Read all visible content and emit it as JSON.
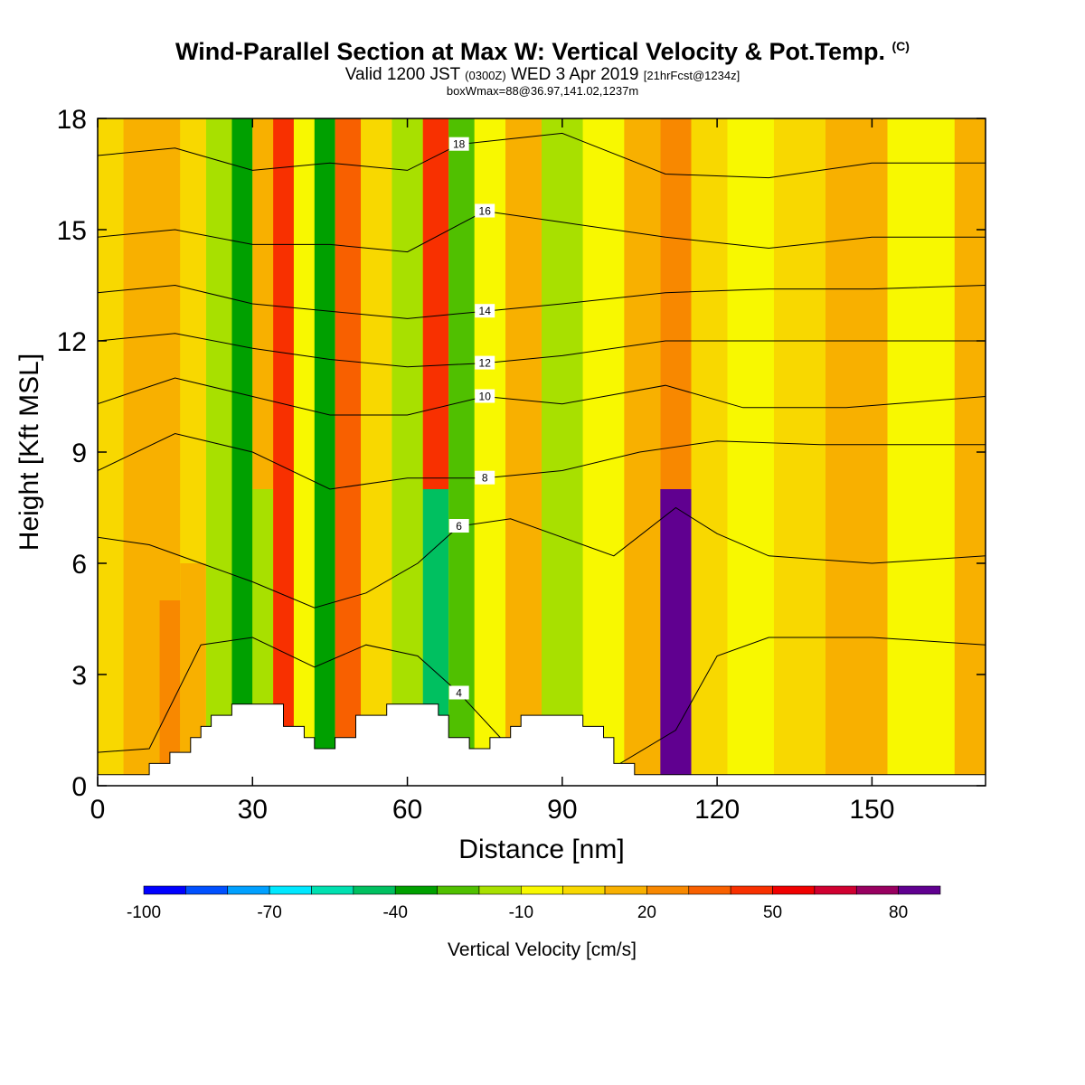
{
  "header": {
    "title": "Wind-Parallel Section at Max W: Vertical Velocity & Pot.Temp.",
    "copyright": "(C)",
    "valid_prefix": "Valid 1200 JST",
    "valid_utc": "(0300Z)",
    "valid_date": "WED 3 Apr 2019",
    "forecast": "[21hrFcst@1234z]",
    "box_info": "boxWmax=88@36.97,141.02,1237m"
  },
  "chart_data": {
    "type": "heatmap",
    "xlabel": "Distance [nm]",
    "ylabel": "Height [Kft MSL]",
    "xlim": [
      0,
      172
    ],
    "ylim": [
      0,
      18
    ],
    "x_ticks": [
      "0",
      "30",
      "60",
      "90",
      "120",
      "150"
    ],
    "y_ticks": [
      "0",
      "3",
      "6",
      "9",
      "12",
      "15",
      "18"
    ],
    "colorbar": {
      "label": "Vertical Velocity [cm/s]",
      "tick_labels": [
        "-100",
        "-70",
        "-40",
        "-10",
        "20",
        "50",
        "80"
      ],
      "colors": [
        "#0000ff",
        "#0050ff",
        "#00a0ff",
        "#00e8ff",
        "#00e0b0",
        "#00c060",
        "#00a000",
        "#50c000",
        "#a8e000",
        "#f8f800",
        "#f8d800",
        "#f8b000",
        "#f88800",
        "#f86000",
        "#f83000",
        "#f00000",
        "#d00030",
        "#980060",
        "#600090"
      ]
    },
    "velocity_columns": [
      {
        "x": 0,
        "bands": [
          {
            "y": [
              0,
              18
            ],
            "w": 0
          }
        ]
      },
      {
        "x": 10,
        "bands": [
          {
            "y": [
              0,
              18
            ],
            "w": 5
          }
        ]
      },
      {
        "x": 14,
        "bands": [
          {
            "y": [
              0,
              5
            ],
            "w": 20
          },
          {
            "y": [
              5,
              18
            ],
            "w": 8
          }
        ]
      },
      {
        "x": 18,
        "bands": [
          {
            "y": [
              0,
              6
            ],
            "w": 10
          },
          {
            "y": [
              6,
              18
            ],
            "w": 0
          }
        ]
      },
      {
        "x": 24,
        "bands": [
          {
            "y": [
              0,
              18
            ],
            "w": -20
          }
        ]
      },
      {
        "x": 28,
        "bands": [
          {
            "y": [
              0,
              18
            ],
            "w": -40
          }
        ]
      },
      {
        "x": 32,
        "bands": [
          {
            "y": [
              0,
              8
            ],
            "w": -25
          },
          {
            "y": [
              8,
              18
            ],
            "w": 10
          }
        ]
      },
      {
        "x": 36,
        "bands": [
          {
            "y": [
              0,
              18
            ],
            "w": 35
          }
        ]
      },
      {
        "x": 40,
        "bands": [
          {
            "y": [
              0,
              18
            ],
            "w": -15
          }
        ]
      },
      {
        "x": 44,
        "bands": [
          {
            "y": [
              0,
              18
            ],
            "w": -40
          }
        ]
      },
      {
        "x": 48,
        "bands": [
          {
            "y": [
              0,
              18
            ],
            "w": 25
          }
        ]
      },
      {
        "x": 54,
        "bands": [
          {
            "y": [
              0,
              18
            ],
            "w": 0
          }
        ]
      },
      {
        "x": 60,
        "bands": [
          {
            "y": [
              0,
              18
            ],
            "w": -25
          }
        ]
      },
      {
        "x": 66,
        "bands": [
          {
            "y": [
              0,
              8
            ],
            "w": -55
          },
          {
            "y": [
              8,
              18
            ],
            "w": 40
          }
        ]
      },
      {
        "x": 70,
        "bands": [
          {
            "y": [
              0,
              18
            ],
            "w": -35
          }
        ]
      },
      {
        "x": 76,
        "bands": [
          {
            "y": [
              0,
              18
            ],
            "w": -15
          }
        ]
      },
      {
        "x": 82,
        "bands": [
          {
            "y": [
              0,
              18
            ],
            "w": 5
          }
        ]
      },
      {
        "x": 90,
        "bands": [
          {
            "y": [
              0,
              18
            ],
            "w": -20
          }
        ]
      },
      {
        "x": 98,
        "bands": [
          {
            "y": [
              0,
              18
            ],
            "w": -10
          }
        ]
      },
      {
        "x": 106,
        "bands": [
          {
            "y": [
              0,
              18
            ],
            "w": 5
          }
        ]
      },
      {
        "x": 112,
        "bands": [
          {
            "y": [
              0,
              8
            ],
            "w": 88
          },
          {
            "y": [
              8,
              18
            ],
            "w": 20
          }
        ]
      },
      {
        "x": 118,
        "bands": [
          {
            "y": [
              0,
              18
            ],
            "w": 0
          }
        ]
      },
      {
        "x": 126,
        "bands": [
          {
            "y": [
              0,
              18
            ],
            "w": -15
          }
        ]
      },
      {
        "x": 136,
        "bands": [
          {
            "y": [
              0,
              18
            ],
            "w": 0
          }
        ]
      },
      {
        "x": 146,
        "bands": [
          {
            "y": [
              0,
              18
            ],
            "w": 10
          }
        ]
      },
      {
        "x": 160,
        "bands": [
          {
            "y": [
              0,
              18
            ],
            "w": -15
          }
        ]
      },
      {
        "x": 172,
        "bands": [
          {
            "y": [
              0,
              18
            ],
            "w": 5
          }
        ]
      }
    ],
    "theta_contours": [
      {
        "level": "4",
        "points": [
          [
            0,
            0.9
          ],
          [
            10,
            1.0
          ],
          [
            20,
            3.8
          ],
          [
            30,
            4.0
          ],
          [
            42,
            3.2
          ],
          [
            52,
            3.8
          ],
          [
            62,
            3.5
          ],
          [
            70,
            2.5
          ],
          [
            80,
            1.0
          ],
          [
            100,
            0.5
          ],
          [
            112,
            1.5
          ],
          [
            120,
            3.5
          ],
          [
            130,
            4.0
          ],
          [
            150,
            4.0
          ],
          [
            172,
            3.8
          ]
        ]
      },
      {
        "level": "6",
        "points": [
          [
            0,
            6.7
          ],
          [
            10,
            6.5
          ],
          [
            20,
            6.0
          ],
          [
            30,
            5.5
          ],
          [
            42,
            4.8
          ],
          [
            52,
            5.2
          ],
          [
            62,
            6.0
          ],
          [
            70,
            7.0
          ],
          [
            80,
            7.2
          ],
          [
            100,
            6.2
          ],
          [
            112,
            7.5
          ],
          [
            120,
            6.8
          ],
          [
            130,
            6.2
          ],
          [
            150,
            6.0
          ],
          [
            172,
            6.2
          ]
        ]
      },
      {
        "level": "8",
        "points": [
          [
            0,
            8.5
          ],
          [
            15,
            9.5
          ],
          [
            30,
            9.0
          ],
          [
            45,
            8.0
          ],
          [
            60,
            8.3
          ],
          [
            75,
            8.3
          ],
          [
            90,
            8.5
          ],
          [
            105,
            9.0
          ],
          [
            120,
            9.3
          ],
          [
            140,
            9.2
          ],
          [
            172,
            9.2
          ]
        ]
      },
      {
        "level": "10",
        "points": [
          [
            0,
            10.3
          ],
          [
            15,
            11.0
          ],
          [
            30,
            10.5
          ],
          [
            45,
            10.0
          ],
          [
            60,
            10.0
          ],
          [
            75,
            10.5
          ],
          [
            90,
            10.3
          ],
          [
            110,
            10.8
          ],
          [
            125,
            10.2
          ],
          [
            145,
            10.2
          ],
          [
            172,
            10.5
          ]
        ]
      },
      {
        "level": "12",
        "points": [
          [
            0,
            12.0
          ],
          [
            15,
            12.2
          ],
          [
            30,
            11.8
          ],
          [
            45,
            11.5
          ],
          [
            60,
            11.3
          ],
          [
            75,
            11.4
          ],
          [
            90,
            11.6
          ],
          [
            110,
            12.0
          ],
          [
            130,
            12.0
          ],
          [
            150,
            12.0
          ],
          [
            172,
            12.0
          ]
        ]
      },
      {
        "level": "14",
        "points": [
          [
            0,
            13.3
          ],
          [
            15,
            13.5
          ],
          [
            30,
            13.0
          ],
          [
            45,
            12.8
          ],
          [
            60,
            12.6
          ],
          [
            75,
            12.8
          ],
          [
            90,
            13.0
          ],
          [
            110,
            13.3
          ],
          [
            130,
            13.4
          ],
          [
            150,
            13.4
          ],
          [
            172,
            13.5
          ]
        ]
      },
      {
        "level": "16",
        "points": [
          [
            0,
            14.8
          ],
          [
            15,
            15.0
          ],
          [
            30,
            14.6
          ],
          [
            45,
            14.6
          ],
          [
            60,
            14.4
          ],
          [
            75,
            15.5
          ],
          [
            90,
            15.2
          ],
          [
            110,
            14.8
          ],
          [
            130,
            14.5
          ],
          [
            150,
            14.8
          ],
          [
            172,
            14.8
          ]
        ]
      },
      {
        "level": "18",
        "points": [
          [
            0,
            17.0
          ],
          [
            15,
            17.2
          ],
          [
            30,
            16.6
          ],
          [
            45,
            16.8
          ],
          [
            60,
            16.6
          ],
          [
            70,
            17.3
          ],
          [
            90,
            17.6
          ],
          [
            110,
            16.5
          ],
          [
            130,
            16.4
          ],
          [
            150,
            16.8
          ],
          [
            172,
            16.8
          ]
        ]
      }
    ],
    "terrain": [
      [
        0,
        0.3
      ],
      [
        10,
        0.3
      ],
      [
        10,
        0.6
      ],
      [
        14,
        0.6
      ],
      [
        14,
        0.9
      ],
      [
        18,
        0.9
      ],
      [
        18,
        1.3
      ],
      [
        20,
        1.3
      ],
      [
        20,
        1.6
      ],
      [
        22,
        1.6
      ],
      [
        22,
        1.9
      ],
      [
        26,
        1.9
      ],
      [
        26,
        2.2
      ],
      [
        36,
        2.2
      ],
      [
        36,
        1.6
      ],
      [
        40,
        1.6
      ],
      [
        40,
        1.3
      ],
      [
        42,
        1.3
      ],
      [
        42,
        1.0
      ],
      [
        46,
        1.0
      ],
      [
        46,
        1.3
      ],
      [
        50,
        1.3
      ],
      [
        50,
        1.9
      ],
      [
        56,
        1.9
      ],
      [
        56,
        2.2
      ],
      [
        66,
        2.2
      ],
      [
        66,
        1.9
      ],
      [
        68,
        1.9
      ],
      [
        68,
        1.3
      ],
      [
        72,
        1.3
      ],
      [
        72,
        1.0
      ],
      [
        76,
        1.0
      ],
      [
        76,
        1.3
      ],
      [
        80,
        1.3
      ],
      [
        80,
        1.6
      ],
      [
        82,
        1.6
      ],
      [
        82,
        1.9
      ],
      [
        94,
        1.9
      ],
      [
        94,
        1.6
      ],
      [
        98,
        1.6
      ],
      [
        98,
        1.3
      ],
      [
        100,
        1.3
      ],
      [
        100,
        0.6
      ],
      [
        104,
        0.6
      ],
      [
        104,
        0.3
      ],
      [
        172,
        0.3
      ],
      [
        172,
        0
      ],
      [
        0,
        0
      ]
    ]
  }
}
